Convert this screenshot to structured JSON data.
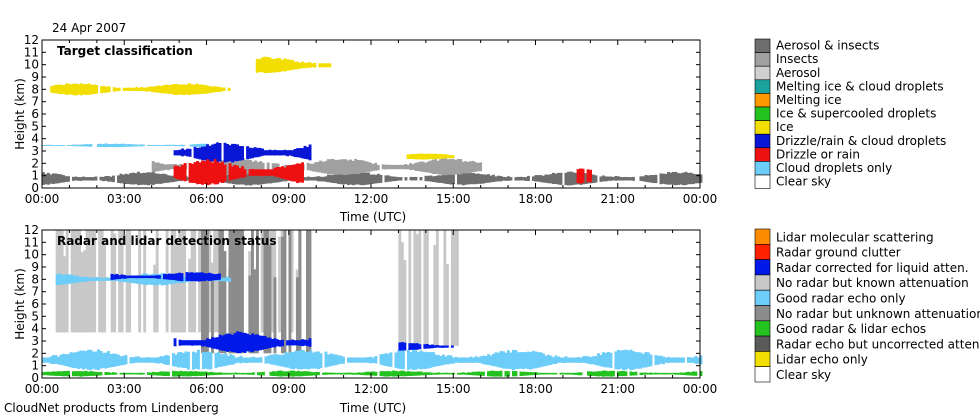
{
  "date_label": "24 Apr 2007",
  "footer": "CloudNet products from Lindenberg",
  "colors": {
    "aerosol_insects": "#6e6e6e",
    "insects": "#a0a0a0",
    "aerosol": "#d0d0d0",
    "melting_cloud": "#1aa39c",
    "melting": "#ff9900",
    "ice_supercooled": "#23c21f",
    "ice": "#f2de00",
    "drizzle_cloud": "#0a16d6",
    "drizzle": "#ee1111",
    "cloud_droplets": "#6ccdf8",
    "clear": "#ffffff",
    "lidar_molecular": "#ff8c00",
    "ground_clutter": "#ff2200",
    "radar_corrected": "#0018e8",
    "radar_dark_grey": "#5a5a5a",
    "unknown_atten": "#8c8c8c",
    "known_atten": "#c8c8c8"
  },
  "chart_data": [
    {
      "type": "heatmap",
      "title": "Target classification",
      "xlabel": "Time (UTC)",
      "ylabel": "Height (km)",
      "xticks": [
        "00:00",
        "03:00",
        "06:00",
        "09:00",
        "12:00",
        "15:00",
        "18:00",
        "21:00",
        "00:00"
      ],
      "yticks": [
        "0",
        "1",
        "2",
        "3",
        "4",
        "5",
        "6",
        "7",
        "8",
        "9",
        "10",
        "11",
        "12"
      ],
      "xlim_hours": [
        0,
        24
      ],
      "ylim_km": [
        0,
        12
      ],
      "legend": [
        {
          "label": "Aerosol & insects",
          "color": "#6e6e6e"
        },
        {
          "label": "Insects",
          "color": "#a0a0a0"
        },
        {
          "label": "Aerosol",
          "color": "#d0d0d0"
        },
        {
          "label": "Melting ice & cloud droplets",
          "color": "#1aa39c"
        },
        {
          "label": "Melting ice",
          "color": "#ff9900"
        },
        {
          "label": "Ice & supercooled droplets",
          "color": "#23c21f"
        },
        {
          "label": "Ice",
          "color": "#f2de00"
        },
        {
          "label": "Drizzle/rain & cloud droplets",
          "color": "#0a16d6"
        },
        {
          "label": "Drizzle or rain",
          "color": "#ee1111"
        },
        {
          "label": "Cloud droplets only",
          "color": "#6ccdf8"
        },
        {
          "label": "Clear sky",
          "color": "#ffffff"
        }
      ],
      "regions": [
        {
          "class": "Ice",
          "t0": 0.3,
          "t1": 6.8,
          "z0": 7.5,
          "z1": 8.5,
          "color": "#f2de00"
        },
        {
          "class": "Ice",
          "t0": 7.8,
          "t1": 10.5,
          "z0": 9.3,
          "z1": 10.6,
          "color": "#f2de00"
        },
        {
          "class": "Aerosol & insects",
          "t0": 0.0,
          "t1": 24.0,
          "z0": 0.2,
          "z1": 1.3,
          "color": "#6e6e6e"
        },
        {
          "class": "Insects",
          "t0": 4.0,
          "t1": 16.0,
          "z0": 1.0,
          "z1": 2.4,
          "color": "#a0a0a0"
        },
        {
          "class": "Cloud droplets only",
          "t0": 0.0,
          "t1": 6.0,
          "z0": 3.3,
          "z1": 3.6,
          "color": "#6ccdf8"
        },
        {
          "class": "Drizzle/rain & cloud droplets",
          "t0": 4.8,
          "t1": 9.8,
          "z0": 2.0,
          "z1": 3.7,
          "color": "#0a16d6"
        },
        {
          "class": "Drizzle or rain",
          "t0": 4.8,
          "t1": 9.5,
          "z0": 0.2,
          "z1": 2.3,
          "color": "#ee1111"
        },
        {
          "class": "Ice",
          "t0": 13.3,
          "t1": 15.0,
          "z0": 2.3,
          "z1": 2.8,
          "color": "#f2de00"
        },
        {
          "class": "Drizzle or rain",
          "t0": 19.5,
          "t1": 20.1,
          "z0": 0.3,
          "z1": 1.7,
          "color": "#ee1111"
        }
      ]
    },
    {
      "type": "heatmap",
      "title": "Radar and lidar detection status",
      "xlabel": "Time (UTC)",
      "ylabel": "Height (km)",
      "xticks": [
        "00:00",
        "03:00",
        "06:00",
        "09:00",
        "12:00",
        "15:00",
        "18:00",
        "21:00",
        "00:00"
      ],
      "yticks": [
        "0",
        "1",
        "2",
        "3",
        "4",
        "5",
        "6",
        "7",
        "8",
        "9",
        "10",
        "11",
        "12"
      ],
      "xlim_hours": [
        0,
        24
      ],
      "ylim_km": [
        0,
        12
      ],
      "legend": [
        {
          "label": "Lidar molecular scattering",
          "color": "#ff8c00"
        },
        {
          "label": "Radar ground clutter",
          "color": "#ff2200"
        },
        {
          "label": "Radar corrected for liquid atten.",
          "color": "#0018e8"
        },
        {
          "label": "No radar but known attenuation",
          "color": "#c8c8c8"
        },
        {
          "label": "Good radar echo only",
          "color": "#6ccdf8"
        },
        {
          "label": "No radar but unknown attenuation",
          "color": "#8c8c8c"
        },
        {
          "label": "Good radar & lidar echos",
          "color": "#23c21f"
        },
        {
          "label": "Radar echo but uncorrected atten.",
          "color": "#5a5a5a"
        },
        {
          "label": "Lidar echo only",
          "color": "#f2de00"
        },
        {
          "label": "Clear sky",
          "color": "#ffffff"
        }
      ],
      "regions": [
        {
          "class": "No radar but known attenuation",
          "t0": 0.5,
          "t1": 9.5,
          "z0": 3.7,
          "z1": 12.0,
          "color": "#c8c8c8"
        },
        {
          "class": "No radar but unknown attenuation",
          "t0": 5.8,
          "t1": 9.8,
          "z0": 2.0,
          "z1": 12.0,
          "color": "#8c8c8c"
        },
        {
          "class": "Good radar echo only",
          "t0": 0.5,
          "t1": 6.8,
          "z0": 7.5,
          "z1": 8.5,
          "color": "#6ccdf8"
        },
        {
          "class": "Radar corrected for liquid atten.",
          "t0": 2.5,
          "t1": 6.5,
          "z0": 7.8,
          "z1": 8.6,
          "color": "#0018e8"
        },
        {
          "class": "Radar corrected for liquid atten.",
          "t0": 4.8,
          "t1": 9.8,
          "z0": 2.0,
          "z1": 3.7,
          "color": "#0018e8"
        },
        {
          "class": "Good radar echo only",
          "t0": 0.0,
          "t1": 24.0,
          "z0": 0.6,
          "z1": 2.3,
          "color": "#6ccdf8"
        },
        {
          "class": "Good radar & lidar echos",
          "t0": 0.0,
          "t1": 24.0,
          "z0": 0.1,
          "z1": 0.6,
          "color": "#23c21f"
        },
        {
          "class": "No radar but known attenuation",
          "t0": 13.0,
          "t1": 15.2,
          "z0": 2.6,
          "z1": 12.0,
          "color": "#c8c8c8"
        },
        {
          "class": "Radar corrected for liquid atten.",
          "t0": 13.0,
          "t1": 15.0,
          "z0": 2.2,
          "z1": 2.9,
          "color": "#0018e8"
        }
      ]
    }
  ]
}
